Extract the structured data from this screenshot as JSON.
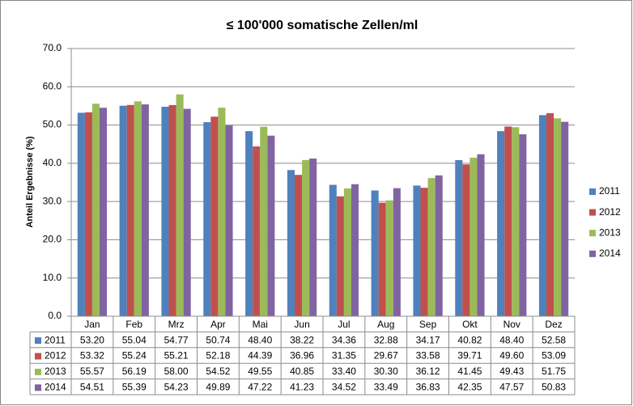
{
  "chart_data": {
    "type": "bar",
    "title": "≤ 100'000 somatische Zellen/ml",
    "y_label": "Anteil Ergebnisse (%)",
    "categories": [
      "Jan",
      "Feb",
      "Mrz",
      "Apr",
      "Mai",
      "Jun",
      "Jul",
      "Aug",
      "Sep",
      "Okt",
      "Nov",
      "Dez"
    ],
    "series": [
      {
        "name": "2011",
        "color": "#4f81bd",
        "values": [
          53.2,
          55.04,
          54.77,
          50.74,
          48.4,
          38.22,
          34.36,
          32.88,
          34.17,
          40.82,
          48.4,
          52.58
        ],
        "value_labels": [
          "53.20",
          "55.04",
          "54.77",
          "50.74",
          "48.40",
          "38.22",
          "34.36",
          "32.88",
          "34.17",
          "40.82",
          "48.40",
          "52.58"
        ]
      },
      {
        "name": "2012",
        "color": "#c0504d",
        "values": [
          53.32,
          55.24,
          55.21,
          52.18,
          44.39,
          36.96,
          31.35,
          29.67,
          33.58,
          39.71,
          49.6,
          53.09
        ],
        "value_labels": [
          "53.32",
          "55.24",
          "55.21",
          "52.18",
          "44.39",
          "36.96",
          "31.35",
          "29.67",
          "33.58",
          "39.71",
          "49.60",
          "53.09"
        ]
      },
      {
        "name": "2013",
        "color": "#9bbb59",
        "values": [
          55.57,
          56.19,
          58,
          54.52,
          49.55,
          40.85,
          33.4,
          30.3,
          36.12,
          41.45,
          49.43,
          51.75
        ],
        "value_labels": [
          "55.57",
          "56.19",
          "58.00",
          "54.52",
          "49.55",
          "40.85",
          "33.40",
          "30.30",
          "36.12",
          "41.45",
          "49.43",
          "51.75"
        ]
      },
      {
        "name": "2014",
        "color": "#8064a2",
        "values": [
          54.51,
          55.39,
          54.23,
          49.89,
          47.22,
          41.23,
          34.52,
          33.49,
          36.83,
          42.35,
          47.57,
          50.83
        ],
        "value_labels": [
          "54.51",
          "55.39",
          "54.23",
          "49.89",
          "47.22",
          "41.23",
          "34.52",
          "33.49",
          "36.83",
          "42.35",
          "47.57",
          "50.83"
        ]
      }
    ],
    "ylim": [
      0,
      70
    ],
    "yticks": [
      {
        "value": 0,
        "label": "0.0"
      },
      {
        "value": 10,
        "label": "10.0"
      },
      {
        "value": 20,
        "label": "20.0"
      },
      {
        "value": 30,
        "label": "30.0"
      },
      {
        "value": 40,
        "label": "40.0"
      },
      {
        "value": 50,
        "label": "50.0"
      },
      {
        "value": 60,
        "label": "60.0"
      },
      {
        "value": 70,
        "label": "70.0"
      }
    ],
    "grid": true,
    "legend": "right"
  }
}
